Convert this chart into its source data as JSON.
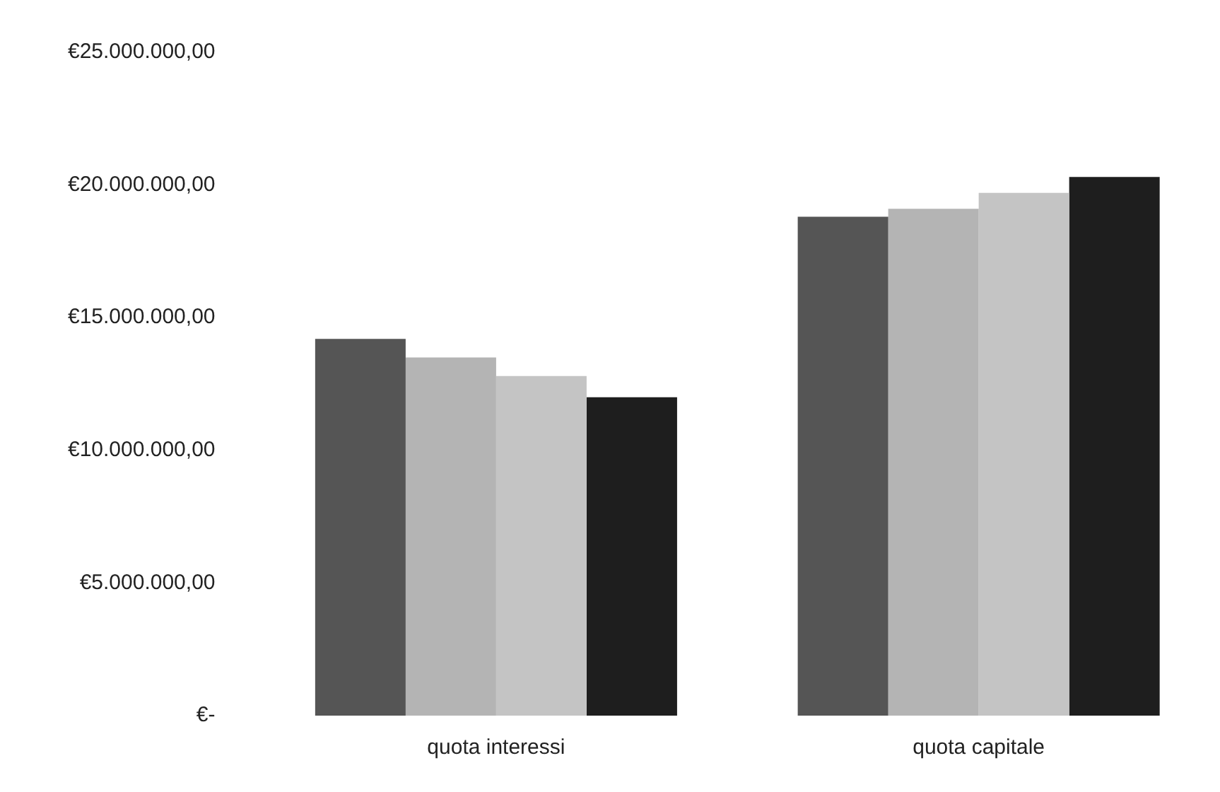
{
  "chart_data": {
    "type": "bar",
    "categories": [
      "quota interessi",
      "quota capitale"
    ],
    "series": [
      {
        "color": "#555555",
        "values": [
          14200000,
          18800000
        ]
      },
      {
        "color": "#b4b4b4",
        "values": [
          13500000,
          19100000
        ]
      },
      {
        "color": "#c4c4c4",
        "values": [
          12800000,
          19700000
        ]
      },
      {
        "color": "#1e1e1e",
        "values": [
          12000000,
          20300000
        ]
      }
    ],
    "ylim": [
      0,
      25000000
    ],
    "yticks": [
      {
        "value": 0,
        "label": "€-"
      },
      {
        "value": 5000000,
        "label": "€5.000.000,00"
      },
      {
        "value": 10000000,
        "label": "€10.000.000,00"
      },
      {
        "value": 15000000,
        "label": "€15.000.000,00"
      },
      {
        "value": 20000000,
        "label": "€20.000.000,00"
      },
      {
        "value": 25000000,
        "label": "€25.000.000,00"
      }
    ],
    "grid": false,
    "legend": false
  }
}
